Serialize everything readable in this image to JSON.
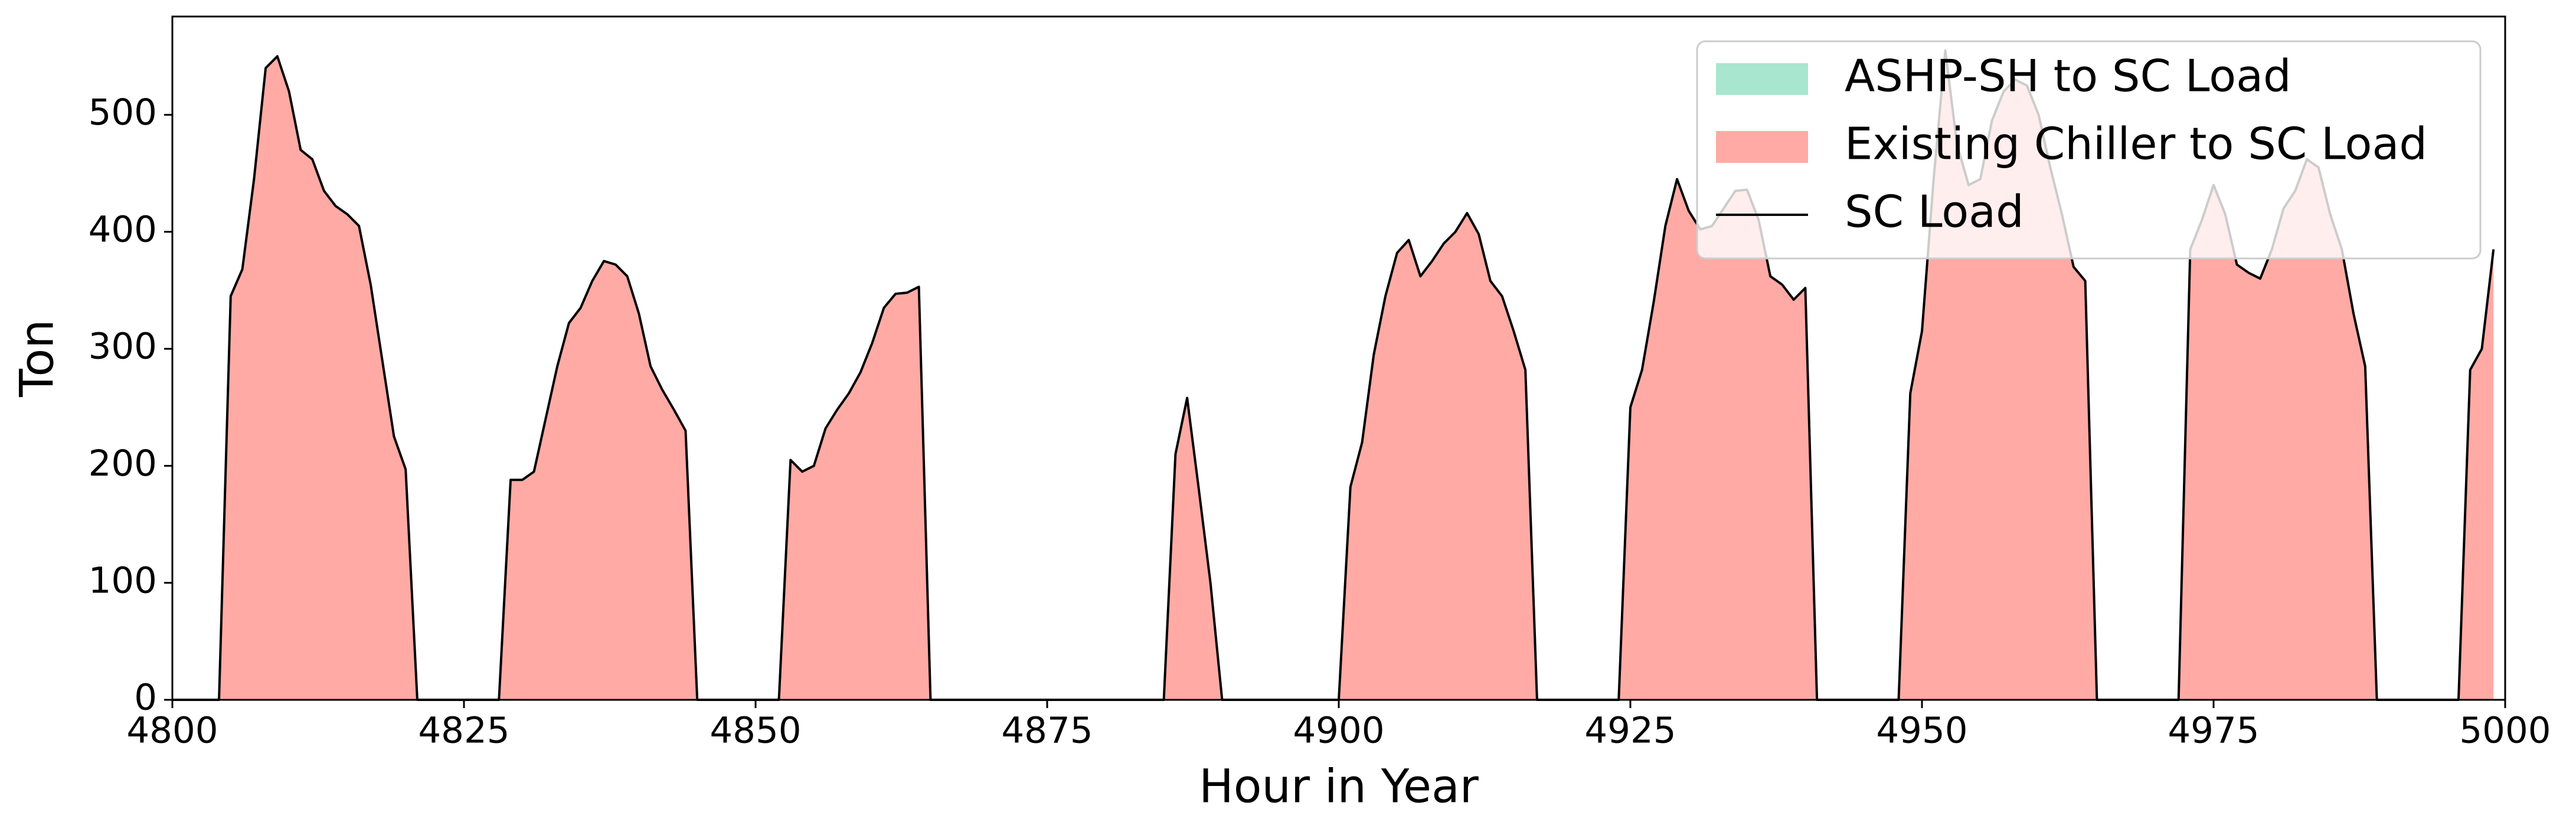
{
  "chart_data": {
    "type": "stacked-area",
    "x": [
      4800,
      4801,
      4802,
      4803,
      4804,
      4805,
      4806,
      4807,
      4808,
      4809,
      4810,
      4811,
      4812,
      4813,
      4814,
      4815,
      4816,
      4817,
      4818,
      4819,
      4820,
      4821,
      4822,
      4823,
      4824,
      4825,
      4826,
      4827,
      4828,
      4829,
      4830,
      4831,
      4832,
      4833,
      4834,
      4835,
      4836,
      4837,
      4838,
      4839,
      4840,
      4841,
      4842,
      4843,
      4844,
      4845,
      4846,
      4847,
      4848,
      4849,
      4850,
      4851,
      4852,
      4853,
      4854,
      4855,
      4856,
      4857,
      4858,
      4859,
      4860,
      4861,
      4862,
      4863,
      4864,
      4865,
      4866,
      4867,
      4868,
      4869,
      4870,
      4871,
      4872,
      4873,
      4874,
      4875,
      4876,
      4877,
      4878,
      4879,
      4880,
      4881,
      4882,
      4883,
      4884,
      4885,
      4886,
      4887,
      4888,
      4889,
      4890,
      4891,
      4892,
      4893,
      4894,
      4895,
      4896,
      4897,
      4898,
      4899,
      4900,
      4901,
      4902,
      4903,
      4904,
      4905,
      4906,
      4907,
      4908,
      4909,
      4910,
      4911,
      4912,
      4913,
      4914,
      4915,
      4916,
      4917,
      4918,
      4919,
      4920,
      4921,
      4922,
      4923,
      4924,
      4925,
      4926,
      4927,
      4928,
      4929,
      4930,
      4931,
      4932,
      4933,
      4934,
      4935,
      4936,
      4937,
      4938,
      4939,
      4940,
      4941,
      4942,
      4943,
      4944,
      4945,
      4946,
      4947,
      4948,
      4949,
      4950,
      4951,
      4952,
      4953,
      4954,
      4955,
      4956,
      4957,
      4958,
      4959,
      4960,
      4961,
      4962,
      4963,
      4964,
      4965,
      4966,
      4967,
      4968,
      4969,
      4970,
      4971,
      4972,
      4973,
      4974,
      4975,
      4976,
      4977,
      4978,
      4979,
      4980,
      4981,
      4982,
      4983,
      4984,
      4985,
      4986,
      4987,
      4988,
      4989,
      4990,
      4991,
      4992,
      4993,
      4994,
      4995,
      4996,
      4997,
      4998,
      4999
    ],
    "series": [
      {
        "name": "ASHP-SH to SC Load",
        "color": "#a8e6cf",
        "kind": "area",
        "values": [
          0,
          0,
          0,
          0,
          0,
          0,
          0,
          0,
          0,
          0,
          0,
          0,
          0,
          0,
          0,
          0,
          0,
          0,
          0,
          0,
          0,
          0,
          0,
          0,
          0,
          0,
          0,
          0,
          0,
          0,
          0,
          0,
          0,
          0,
          0,
          0,
          0,
          0,
          0,
          0,
          0,
          0,
          0,
          0,
          0,
          0,
          0,
          0,
          0,
          0,
          0,
          0,
          0,
          0,
          0,
          0,
          0,
          0,
          0,
          0,
          0,
          0,
          0,
          0,
          0,
          0,
          0,
          0,
          0,
          0,
          0,
          0,
          0,
          0,
          0,
          0,
          0,
          0,
          0,
          0,
          0,
          0,
          0,
          0,
          0,
          0,
          0,
          0,
          0,
          0,
          0,
          0,
          0,
          0,
          0,
          0,
          0,
          0,
          0,
          0,
          0,
          0,
          0,
          0,
          0,
          0,
          0,
          0,
          0,
          0,
          0,
          0,
          0,
          0,
          0,
          0,
          0,
          0,
          0,
          0,
          0,
          0,
          0,
          0,
          0,
          0,
          0,
          0,
          0,
          0,
          0,
          0,
          0,
          0,
          0,
          0,
          0,
          0,
          0,
          0,
          0,
          0,
          0,
          0,
          0,
          0,
          0,
          0,
          0,
          0,
          0,
          0,
          0,
          0,
          0,
          0,
          0,
          0,
          0,
          0,
          0,
          0,
          0,
          0,
          0,
          0,
          0,
          0,
          0,
          0,
          0,
          0,
          0,
          0,
          0,
          0,
          0,
          0,
          0,
          0,
          0,
          0,
          0,
          0,
          0,
          0,
          0,
          0,
          0,
          0,
          0,
          0,
          0,
          0,
          0,
          0,
          0,
          0,
          0,
          0
        ]
      },
      {
        "name": "Existing Chiller to SC Load",
        "color": "#ffaaa5",
        "kind": "area",
        "values": [
          0,
          0,
          0,
          0,
          0,
          345,
          368,
          445,
          540,
          550,
          520,
          470,
          462,
          435,
          422,
          415,
          405,
          355,
          290,
          225,
          197,
          0,
          0,
          0,
          0,
          0,
          0,
          0,
          0,
          188,
          188,
          195,
          240,
          285,
          322,
          335,
          358,
          375,
          372,
          362,
          330,
          285,
          265,
          248,
          230,
          0,
          0,
          0,
          0,
          0,
          0,
          0,
          0,
          205,
          195,
          200,
          232,
          248,
          262,
          280,
          305,
          335,
          347,
          348,
          353,
          0,
          0,
          0,
          0,
          0,
          0,
          0,
          0,
          0,
          0,
          0,
          0,
          0,
          0,
          0,
          0,
          0,
          0,
          0,
          0,
          0,
          210,
          258,
          180,
          100,
          0,
          0,
          0,
          0,
          0,
          0,
          0,
          0,
          0,
          0,
          0,
          182,
          220,
          295,
          345,
          382,
          393,
          362,
          375,
          390,
          400,
          416,
          398,
          358,
          345,
          315,
          282,
          0,
          0,
          0,
          0,
          0,
          0,
          0,
          0,
          250,
          282,
          340,
          405,
          445,
          418,
          402,
          405,
          420,
          435,
          436,
          410,
          362,
          355,
          342,
          352,
          0,
          0,
          0,
          0,
          0,
          0,
          0,
          0,
          262,
          315,
          445,
          555,
          475,
          440,
          445,
          495,
          520,
          530,
          525,
          500,
          455,
          415,
          370,
          358,
          0,
          0,
          0,
          0,
          0,
          0,
          0,
          0,
          385,
          410,
          440,
          415,
          372,
          365,
          360,
          385,
          420,
          435,
          462,
          455,
          415,
          385,
          330,
          285,
          0,
          0,
          0,
          0,
          0,
          0,
          0,
          0,
          282,
          300,
          385
        ]
      },
      {
        "name": "SC Load",
        "color": "#000000",
        "kind": "line",
        "values": [
          0,
          0,
          0,
          0,
          0,
          345,
          368,
          445,
          540,
          550,
          520,
          470,
          462,
          435,
          422,
          415,
          405,
          355,
          290,
          225,
          197,
          0,
          0,
          0,
          0,
          0,
          0,
          0,
          0,
          188,
          188,
          195,
          240,
          285,
          322,
          335,
          358,
          375,
          372,
          362,
          330,
          285,
          265,
          248,
          230,
          0,
          0,
          0,
          0,
          0,
          0,
          0,
          0,
          205,
          195,
          200,
          232,
          248,
          262,
          280,
          305,
          335,
          347,
          348,
          353,
          0,
          0,
          0,
          0,
          0,
          0,
          0,
          0,
          0,
          0,
          0,
          0,
          0,
          0,
          0,
          0,
          0,
          0,
          0,
          0,
          0,
          210,
          258,
          180,
          100,
          0,
          0,
          0,
          0,
          0,
          0,
          0,
          0,
          0,
          0,
          0,
          182,
          220,
          295,
          345,
          382,
          393,
          362,
          375,
          390,
          400,
          416,
          398,
          358,
          345,
          315,
          282,
          0,
          0,
          0,
          0,
          0,
          0,
          0,
          0,
          250,
          282,
          340,
          405,
          445,
          418,
          402,
          405,
          420,
          435,
          436,
          410,
          362,
          355,
          342,
          352,
          0,
          0,
          0,
          0,
          0,
          0,
          0,
          0,
          262,
          315,
          445,
          555,
          475,
          440,
          445,
          495,
          520,
          530,
          525,
          500,
          455,
          415,
          370,
          358,
          0,
          0,
          0,
          0,
          0,
          0,
          0,
          0,
          385,
          410,
          440,
          415,
          372,
          365,
          360,
          385,
          420,
          435,
          462,
          455,
          415,
          385,
          330,
          285,
          0,
          0,
          0,
          0,
          0,
          0,
          0,
          0,
          282,
          300,
          385
        ]
      }
    ],
    "x_label": "Hour in Year",
    "y_label": "Ton",
    "xlim": [
      4800,
      5000
    ],
    "xticks": [
      4800,
      4825,
      4850,
      4875,
      4900,
      4925,
      4950,
      4975,
      5000
    ],
    "ylim": [
      0,
      584
    ],
    "yticks": [
      0,
      100,
      200,
      300,
      400,
      500
    ],
    "grid": false,
    "legend": "upper right"
  }
}
